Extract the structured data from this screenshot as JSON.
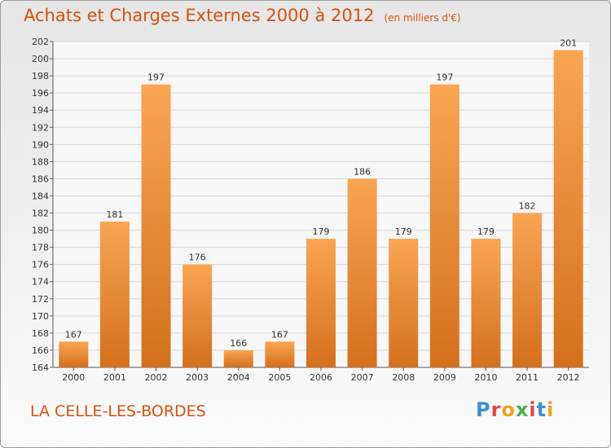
{
  "title": {
    "main": "Achats et Charges Externes 2000 à 2012",
    "unit": "(en milliers d'€)"
  },
  "location": "LA CELLE-LES-BORDES",
  "logo": {
    "text": "Proxiti",
    "colors": [
      "#3a8fd6",
      "#e04848",
      "#f0a020",
      "#4cae4c",
      "#e04848",
      "#3a8fd6",
      "#f0a020"
    ]
  },
  "colors": {
    "bar_light": "#f9a552",
    "bar_dark": "#d4701c",
    "title": "#d4520f",
    "grid": "#d8d8d8"
  },
  "chart_data": {
    "type": "bar",
    "categories": [
      "2000",
      "2001",
      "2002",
      "2003",
      "2004",
      "2005",
      "2006",
      "2007",
      "2008",
      "2009",
      "2010",
      "2011",
      "2012"
    ],
    "values": [
      167,
      181,
      197,
      176,
      166,
      167,
      179,
      186,
      179,
      197,
      179,
      182,
      201
    ],
    "ylim": [
      164,
      202
    ],
    "yticks": [
      164,
      166,
      168,
      170,
      172,
      174,
      176,
      178,
      180,
      182,
      184,
      186,
      188,
      190,
      192,
      194,
      196,
      198,
      200,
      202
    ],
    "grid": true,
    "data_labels": true
  }
}
